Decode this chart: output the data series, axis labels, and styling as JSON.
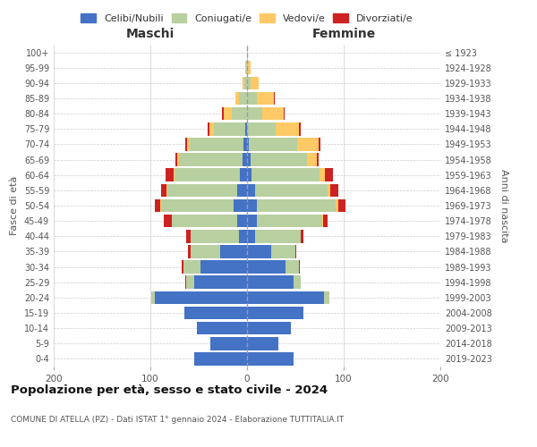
{
  "age_groups": [
    "0-4",
    "5-9",
    "10-14",
    "15-19",
    "20-24",
    "25-29",
    "30-34",
    "35-39",
    "40-44",
    "45-49",
    "50-54",
    "55-59",
    "60-64",
    "65-69",
    "70-74",
    "75-79",
    "80-84",
    "85-89",
    "90-94",
    "95-99",
    "100+"
  ],
  "birth_years": [
    "2019-2023",
    "2014-2018",
    "2009-2013",
    "2004-2008",
    "1999-2003",
    "1994-1998",
    "1989-1993",
    "1984-1988",
    "1979-1983",
    "1974-1978",
    "1969-1973",
    "1964-1968",
    "1959-1963",
    "1954-1958",
    "1949-1953",
    "1944-1948",
    "1939-1943",
    "1934-1938",
    "1929-1933",
    "1924-1928",
    "≤ 1923"
  ],
  "male_celibi": [
    55,
    38,
    52,
    65,
    95,
    55,
    48,
    28,
    8,
    10,
    14,
    10,
    7,
    5,
    4,
    2,
    0,
    0,
    0,
    0,
    0
  ],
  "male_coniugati": [
    0,
    0,
    0,
    0,
    4,
    8,
    18,
    30,
    50,
    68,
    75,
    72,
    68,
    65,
    55,
    32,
    16,
    8,
    3,
    1,
    0
  ],
  "male_vedovi": [
    0,
    0,
    0,
    0,
    0,
    0,
    0,
    0,
    0,
    0,
    1,
    1,
    1,
    2,
    3,
    5,
    8,
    4,
    2,
    1,
    0
  ],
  "male_divorziati": [
    0,
    0,
    0,
    0,
    0,
    1,
    2,
    3,
    5,
    8,
    5,
    6,
    8,
    2,
    2,
    2,
    2,
    0,
    0,
    0,
    0
  ],
  "female_celibi": [
    48,
    32,
    45,
    58,
    80,
    48,
    40,
    25,
    8,
    10,
    10,
    8,
    5,
    4,
    2,
    0,
    0,
    0,
    0,
    0,
    0
  ],
  "female_coniugati": [
    0,
    0,
    0,
    0,
    5,
    8,
    14,
    25,
    48,
    68,
    82,
    75,
    70,
    58,
    50,
    30,
    16,
    10,
    4,
    1,
    0
  ],
  "female_vedovi": [
    0,
    0,
    0,
    0,
    0,
    0,
    0,
    0,
    0,
    1,
    2,
    3,
    6,
    10,
    22,
    24,
    22,
    18,
    8,
    3,
    1
  ],
  "female_divorziati": [
    0,
    0,
    0,
    0,
    0,
    0,
    1,
    1,
    2,
    4,
    8,
    8,
    8,
    2,
    2,
    2,
    1,
    1,
    0,
    0,
    0
  ],
  "color_celibi": "#4472c4",
  "color_coniugati": "#b8cfa0",
  "color_vedovi": "#ffc966",
  "color_divorziati": "#cc2222",
  "title_main": "Popolazione per età, sesso e stato civile - 2024",
  "title_sub": "COMUNE DI ATELLA (PZ) - Dati ISTAT 1° gennaio 2024 - Elaborazione TUTTITALIA.IT",
  "xlabel_left": "Maschi",
  "xlabel_right": "Femmine",
  "ylabel_left": "Fasce di età",
  "ylabel_right": "Anni di nascita",
  "xlim": 200,
  "legend_labels": [
    "Celibi/Nubili",
    "Coniugati/e",
    "Vedovi/e",
    "Divorziati/e"
  ],
  "background_color": "#ffffff",
  "grid_color": "#cccccc"
}
